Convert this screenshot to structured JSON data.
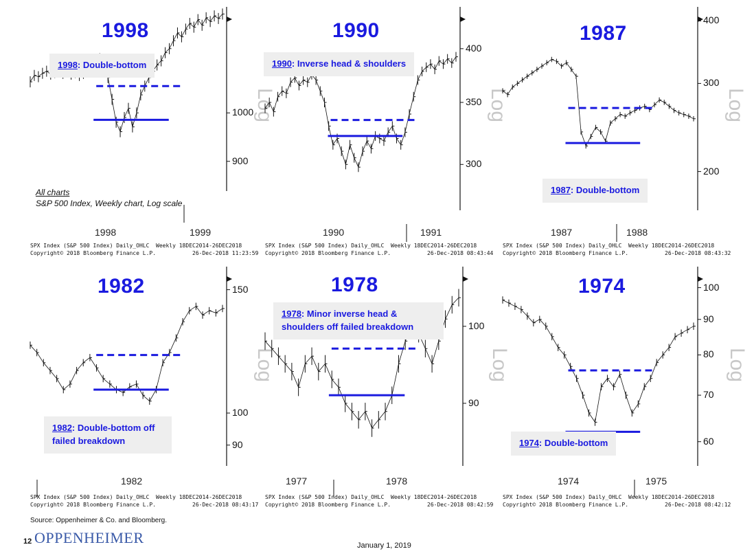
{
  "chart_data": [
    {
      "type": "line",
      "title": "1998",
      "note": {
        "year": "1998",
        "text": ": Double-bottom"
      },
      "y_ticks": [
        "1000",
        "900"
      ],
      "ylim": [
        850,
        1250
      ],
      "y_tick_values": [
        1000,
        900
      ],
      "x_labels": [
        "1998",
        "1999"
      ],
      "scale_label": "Log",
      "footer": [
        "SPX Index (S&P 500 Index) Daily_OHLC  Weekly 18DEC2014-26DEC2018",
        "Copyright© 2018 Bloomberg Finance L.P.           26-Dec-2018 11:23:59"
      ],
      "values": [
        1070,
        1085,
        1082,
        1090,
        1095,
        1088,
        1092,
        1098,
        1090,
        1095,
        1088,
        1092,
        1085,
        1090,
        1095,
        1100,
        1110,
        1125,
        1105,
        1080,
        1030,
        980,
        960,
        990,
        1010,
        970,
        1000,
        1040,
        1060,
        1080,
        1095,
        1110,
        1120,
        1140,
        1150,
        1170,
        1190,
        1180,
        1200,
        1215,
        1205,
        1225,
        1210,
        1230,
        1220,
        1235,
        1228,
        1240
      ],
      "resistance": 1060,
      "support": 985
    },
    {
      "type": "line",
      "title": "1990",
      "note": {
        "year": "1990",
        "text": ": Inverse head & shoulders"
      },
      "y_ticks": [
        "400",
        "350",
        "300"
      ],
      "ylim": [
        270,
        440
      ],
      "y_tick_values": [
        400,
        350,
        300
      ],
      "x_labels": [
        "1990",
        "1991"
      ],
      "scale_label": "Log",
      "footer": [
        "SPX Index (S&P 500 Index) Daily_OHLC  Weekly 18DEC2014-26DEC2018",
        "Copyright© 2018 Bloomberg Finance L.P.           26-Dec-2018 08:43:44"
      ],
      "values": [
        345,
        350,
        342,
        355,
        360,
        358,
        368,
        372,
        365,
        370,
        368,
        375,
        370,
        360,
        350,
        330,
        315,
        320,
        310,
        300,
        315,
        305,
        298,
        310,
        318,
        312,
        322,
        320,
        318,
        325,
        330,
        320,
        315,
        325,
        340,
        355,
        370,
        378,
        382,
        385,
        380,
        388,
        385,
        390,
        386,
        392
      ],
      "resistance": 335,
      "support": 322
    },
    {
      "type": "line",
      "title": "1987",
      "note": {
        "year": "1987",
        "text": ": Double-bottom"
      },
      "y_ticks": [
        "400",
        "300",
        "200"
      ],
      "ylim": [
        170,
        420
      ],
      "y_tick_values": [
        400,
        300,
        200
      ],
      "x_labels": [
        "1987",
        "1988"
      ],
      "scale_label": "Log",
      "footer": [
        "SPX Index (S&P 500 Index) Daily_OHLC  Weekly 18DEC2014-26DEC2018",
        "Copyright© 2018 Bloomberg Finance L.P.           26-Dec-2018 08:43:32"
      ],
      "values": [
        290,
        285,
        295,
        300,
        305,
        310,
        315,
        320,
        325,
        330,
        335,
        332,
        325,
        330,
        320,
        310,
        240,
        225,
        235,
        245,
        240,
        230,
        250,
        255,
        260,
        258,
        262,
        265,
        268,
        270,
        266,
        272,
        278,
        275,
        270,
        265,
        262,
        260,
        258,
        255
      ],
      "resistance": 268,
      "support": 228
    },
    {
      "type": "line",
      "title": "1982",
      "note": {
        "year": "1982",
        "text": ": Double-bottom off failed breakdown"
      },
      "y_ticks": [
        "150",
        "100",
        "90"
      ],
      "ylim": [
        85,
        160
      ],
      "y_tick_values": [
        150,
        100,
        90
      ],
      "x_labels": [
        "1982"
      ],
      "scale_label": "Log",
      "footer": [
        "SPX Index (S&P 500 Index) Daily_OHLC  Weekly 18DEC2014-26DEC2018",
        "Copyright© 2018 Bloomberg Finance L.P.           26-Dec-2018 08:43:17"
      ],
      "values": [
        125,
        122,
        118,
        115,
        112,
        108,
        110,
        115,
        118,
        120,
        116,
        112,
        110,
        108,
        107,
        109,
        110,
        106,
        104,
        108,
        118,
        122,
        128,
        135,
        140,
        142,
        138,
        140,
        139,
        141
      ],
      "resistance": 121,
      "support": 108
    },
    {
      "type": "line",
      "title": "1978",
      "note": {
        "year": "1978",
        "text": ": Minor inverse head & shoulders off failed breakdown"
      },
      "y_ticks": [
        "100",
        "90"
      ],
      "ylim": [
        83,
        108
      ],
      "y_tick_values": [
        100,
        90
      ],
      "x_labels": [
        "1977",
        "1978"
      ],
      "scale_label": "Log",
      "footer": [
        "SPX Index (S&P 500 Index) Daily_OHLC  Weekly 18DEC2014-26DEC2018",
        "Copyright© 2018 Bloomberg Finance L.P.           26-Dec-2018 08:42:59"
      ],
      "values": [
        98,
        97,
        96,
        95,
        94,
        92,
        95,
        96,
        94,
        95,
        93,
        92,
        90,
        89,
        88,
        89,
        87,
        88,
        89,
        91,
        95,
        98,
        100,
        99,
        97,
        95,
        98,
        101,
        103,
        104
      ],
      "resistance": 97,
      "support": 91
    },
    {
      "type": "line",
      "title": "1974",
      "note": {
        "year": "1974",
        "text": ": Double-bottom"
      },
      "y_ticks": [
        "100",
        "90",
        "80",
        "70",
        "60"
      ],
      "ylim": [
        56,
        106
      ],
      "y_tick_values": [
        100,
        90,
        80,
        70,
        60
      ],
      "x_labels": [
        "1974",
        "1975"
      ],
      "scale_label": "Log",
      "footer": [
        "SPX Index (S&P 500 Index) Daily_OHLC  Weekly 18DEC2014-26DEC2018",
        "Copyright© 2018 Bloomberg Finance L.P.           26-Dec-2018 08:42:12"
      ],
      "values": [
        96,
        95,
        94,
        93,
        91,
        89,
        90,
        88,
        85,
        82,
        80,
        77,
        74,
        70,
        66,
        64,
        72,
        74,
        72,
        75,
        70,
        66,
        68,
        72,
        74,
        78,
        80,
        82,
        85,
        86,
        87,
        88
      ],
      "resistance": 76,
      "support": 62
    }
  ],
  "all_charts_note": {
    "line1": "All charts",
    "line2": "S&P 500 Index, Weekly chart, Log scale"
  },
  "source": "Source:  Oppenheimer & Co. and Bloomberg.",
  "page_number": "12",
  "logo_text": "OPPENHEIMER",
  "date": "January 1, 2019",
  "colors": {
    "accent": "#1a1adf",
    "price": "#111111",
    "note_bg": "#eeeeee"
  }
}
